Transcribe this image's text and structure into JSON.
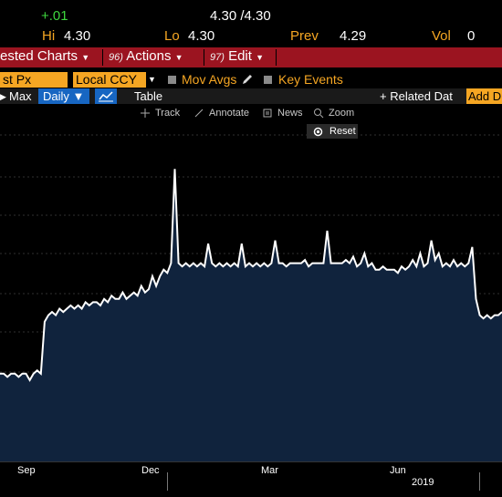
{
  "quote": {
    "change": "+.01",
    "bid_ask": "4.30 /4.30",
    "hi_label": "Hi",
    "hi_value": "4.30",
    "lo_label": "Lo",
    "lo_value": "4.30",
    "prev_label": "Prev",
    "prev_value": "4.29",
    "vol_label": "Vol",
    "vol_value": "0"
  },
  "menu": {
    "suggested_charts": "ested Charts",
    "actions_num": "96)",
    "actions": "Actions",
    "edit_num": "97)",
    "edit": "Edit"
  },
  "options": {
    "field": "st Px",
    "currency": "Local CCY",
    "mov_avgs": "Mov Avgs",
    "key_events": "Key Events"
  },
  "toolbar": {
    "max": "Max",
    "daily": "Daily ▼",
    "table": "Table",
    "related": "+ Related Dat",
    "add": "Add D"
  },
  "chart_tools": {
    "track": "Track",
    "annotate": "Annotate",
    "news": "News",
    "zoom": "Zoom",
    "reset": "Reset"
  },
  "colors": {
    "accent_orange": "#f5a623",
    "menubar_red": "#9b1420",
    "area_fill": "#10233d",
    "line": "#ffffff",
    "up_green": "#3ed63e"
  },
  "chart_data": {
    "type": "area",
    "xlabel": "",
    "ylabel": "",
    "x_ticks": [
      "Sep",
      "Dec",
      "Mar",
      "Jun"
    ],
    "x_year_label": "2019",
    "grid": true,
    "series": [
      {
        "values": [
          3.72,
          3.72,
          3.71,
          3.72,
          3.72,
          3.71,
          3.72,
          3.72,
          3.7,
          3.72,
          3.73,
          3.72,
          3.88,
          3.9,
          3.91,
          3.9,
          3.92,
          3.91,
          3.92,
          3.93,
          3.92,
          3.93,
          3.92,
          3.94,
          3.93,
          3.94,
          3.94,
          3.93,
          3.95,
          3.94,
          3.96,
          3.95,
          3.95,
          3.97,
          3.95,
          3.96,
          3.97,
          3.96,
          3.99,
          3.97,
          3.98,
          4.02,
          3.99,
          4.02,
          4.04,
          4.03,
          4.06,
          4.35,
          4.06,
          4.05,
          4.06,
          4.05,
          4.06,
          4.05,
          4.06,
          4.05,
          4.12,
          4.06,
          4.05,
          4.06,
          4.05,
          4.06,
          4.05,
          4.06,
          4.05,
          4.12,
          4.05,
          4.06,
          4.05,
          4.06,
          4.05,
          4.06,
          4.05,
          4.06,
          4.13,
          4.06,
          4.06,
          4.05,
          4.06,
          4.06,
          4.06,
          4.06,
          4.07,
          4.05,
          4.06,
          4.06,
          4.06,
          4.06,
          4.16,
          4.06,
          4.06,
          4.06,
          4.06,
          4.07,
          4.06,
          4.08,
          4.05,
          4.06,
          4.09,
          4.05,
          4.06,
          4.04,
          4.04,
          4.05,
          4.04,
          4.04,
          4.04,
          4.03,
          4.05,
          4.04,
          4.05,
          4.07,
          4.05,
          4.09,
          4.05,
          4.06,
          4.13,
          4.07,
          4.09,
          4.05,
          4.06,
          4.05,
          4.07,
          4.05,
          4.06,
          4.05,
          4.06,
          4.11,
          3.95,
          3.9,
          3.89,
          3.9,
          3.89,
          3.9,
          3.9,
          3.91
        ]
      }
    ],
    "ylim": [
      3.45,
      4.55
    ]
  }
}
